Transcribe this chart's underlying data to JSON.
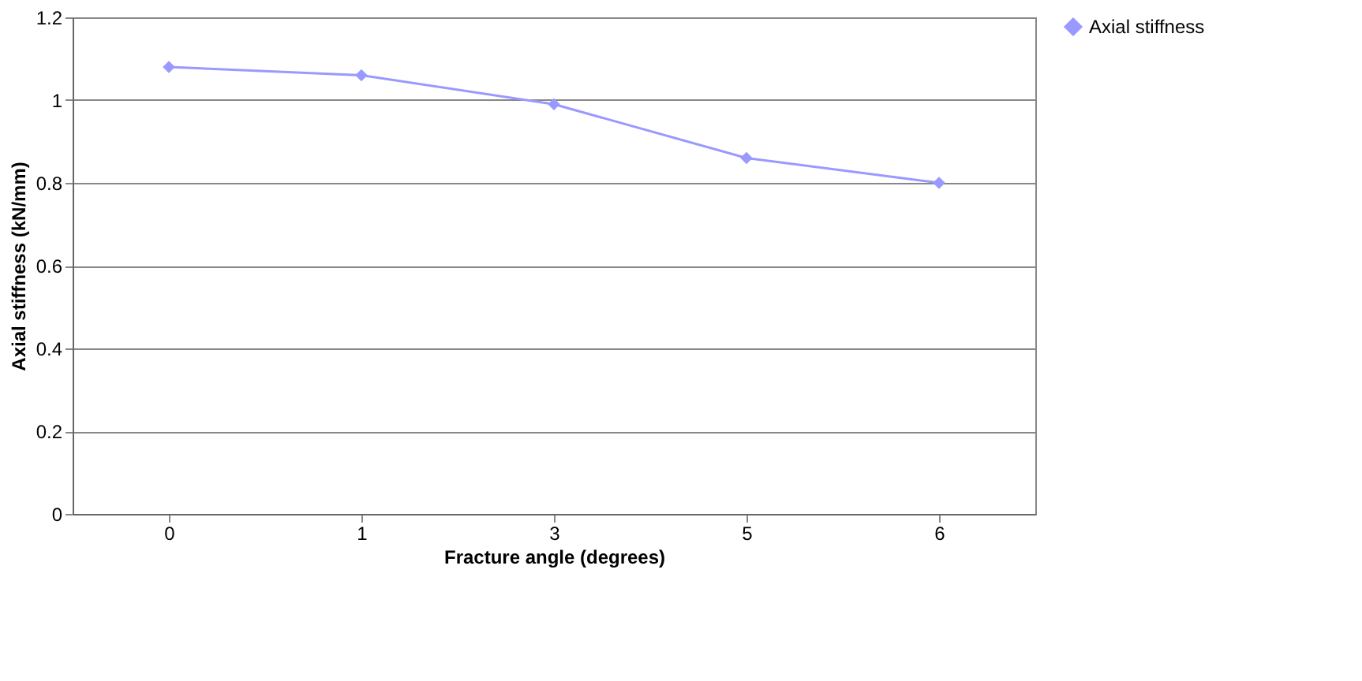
{
  "chart_data": {
    "type": "line",
    "xlabel": "Fracture angle (degrees)",
    "ylabel": "Axial stiffness (kN/mm)",
    "categories": [
      "0",
      "1",
      "3",
      "5",
      "6"
    ],
    "series": [
      {
        "name": "Axial stiffness",
        "color": "#9999ff",
        "values": [
          1.08,
          1.06,
          0.99,
          0.86,
          0.8
        ]
      }
    ],
    "ylim": [
      0,
      1.2
    ],
    "yticks": [
      0,
      0.2,
      0.4,
      0.6,
      0.8,
      1,
      1.2
    ],
    "grid": "y",
    "legend": "right",
    "marker": "diamond",
    "line_style": "solid"
  }
}
